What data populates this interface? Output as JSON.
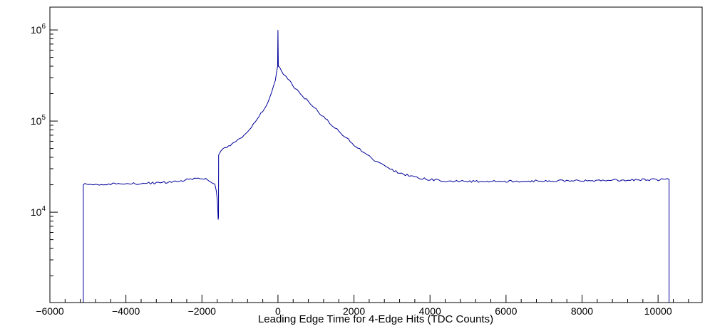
{
  "chart_data": {
    "type": "line",
    "title": "",
    "xlabel": "Leading Edge Time for 4-Edge Hits (TDC Counts)",
    "ylabel": "",
    "yscale": "log",
    "xlim": [
      -6000,
      11160
    ],
    "ylim": [
      1020,
      1780000
    ],
    "x_ticks": [
      -6000,
      -4000,
      -2000,
      0,
      2000,
      4000,
      6000,
      8000,
      10000
    ],
    "x_tick_step": 2000,
    "x_minor_step": 400,
    "y_ticks": [
      10000,
      100000,
      1000000
    ],
    "grid": false,
    "legend": false,
    "line_color": "#000099",
    "frame_color": "#000000",
    "background_color": "#ffffff",
    "points": [
      [
        -5120,
        1020
      ],
      [
        -5120,
        20300
      ],
      [
        -4900,
        20200
      ],
      [
        -4600,
        20200
      ],
      [
        -4300,
        20300
      ],
      [
        -4000,
        20400
      ],
      [
        -3700,
        20600
      ],
      [
        -3400,
        20800
      ],
      [
        -3100,
        21100
      ],
      [
        -2800,
        21500
      ],
      [
        -2600,
        21900
      ],
      [
        -2450,
        22400
      ],
      [
        -2300,
        23100
      ],
      [
        -2200,
        23600
      ],
      [
        -2100,
        23800
      ],
      [
        -2000,
        23600
      ],
      [
        -1900,
        23000
      ],
      [
        -1800,
        22200
      ],
      [
        -1720,
        21200
      ],
      [
        -1660,
        19800
      ],
      [
        -1620,
        17500
      ],
      [
        -1595,
        13500
      ],
      [
        -1580,
        9800
      ],
      [
        -1572,
        8500
      ],
      [
        -1565,
        8900
      ],
      [
        -1560,
        42000
      ],
      [
        -1500,
        46500
      ],
      [
        -1400,
        50500
      ],
      [
        -1300,
        53500
      ],
      [
        -1200,
        56500
      ],
      [
        -1100,
        60000
      ],
      [
        -1000,
        64500
      ],
      [
        -900,
        70000
      ],
      [
        -800,
        77000
      ],
      [
        -700,
        86000
      ],
      [
        -600,
        97000
      ],
      [
        -500,
        111000
      ],
      [
        -400,
        129000
      ],
      [
        -300,
        152000
      ],
      [
        -220,
        180000
      ],
      [
        -160,
        210000
      ],
      [
        -110,
        245000
      ],
      [
        -70,
        285000
      ],
      [
        -40,
        330000
      ],
      [
        -20,
        375000
      ],
      [
        -10,
        395000
      ],
      [
        0,
        1000000
      ],
      [
        10,
        398000
      ],
      [
        40,
        382000
      ],
      [
        100,
        352000
      ],
      [
        180,
        318000
      ],
      [
        260,
        288000
      ],
      [
        350,
        259000
      ],
      [
        450,
        232000
      ],
      [
        550,
        209000
      ],
      [
        650,
        189000
      ],
      [
        750,
        171000
      ],
      [
        850,
        155000
      ],
      [
        950,
        141000
      ],
      [
        1050,
        128000
      ],
      [
        1150,
        117000
      ],
      [
        1250,
        106500
      ],
      [
        1350,
        97000
      ],
      [
        1450,
        88500
      ],
      [
        1550,
        81000
      ],
      [
        1650,
        74000
      ],
      [
        1750,
        68000
      ],
      [
        1850,
        62500
      ],
      [
        1950,
        57500
      ],
      [
        2050,
        53000
      ],
      [
        2150,
        49000
      ],
      [
        2250,
        45500
      ],
      [
        2350,
        42300
      ],
      [
        2450,
        39500
      ],
      [
        2550,
        37000
      ],
      [
        2650,
        34800
      ],
      [
        2750,
        32900
      ],
      [
        2850,
        31200
      ],
      [
        2950,
        29800
      ],
      [
        3050,
        28500
      ],
      [
        3200,
        27000
      ],
      [
        3350,
        25800
      ],
      [
        3500,
        24800
      ],
      [
        3650,
        24000
      ],
      [
        3800,
        23400
      ],
      [
        4000,
        22800
      ],
      [
        4200,
        22400
      ],
      [
        4400,
        22100
      ],
      [
        4700,
        21900
      ],
      [
        5000,
        21800
      ],
      [
        5500,
        21800
      ],
      [
        6000,
        21900
      ],
      [
        6500,
        22000
      ],
      [
        7000,
        22100
      ],
      [
        7500,
        22200
      ],
      [
        8000,
        22300
      ],
      [
        8500,
        22400
      ],
      [
        9000,
        22500
      ],
      [
        9500,
        22700
      ],
      [
        10000,
        22800
      ],
      [
        10290,
        22900
      ],
      [
        10290,
        1020
      ]
    ]
  }
}
